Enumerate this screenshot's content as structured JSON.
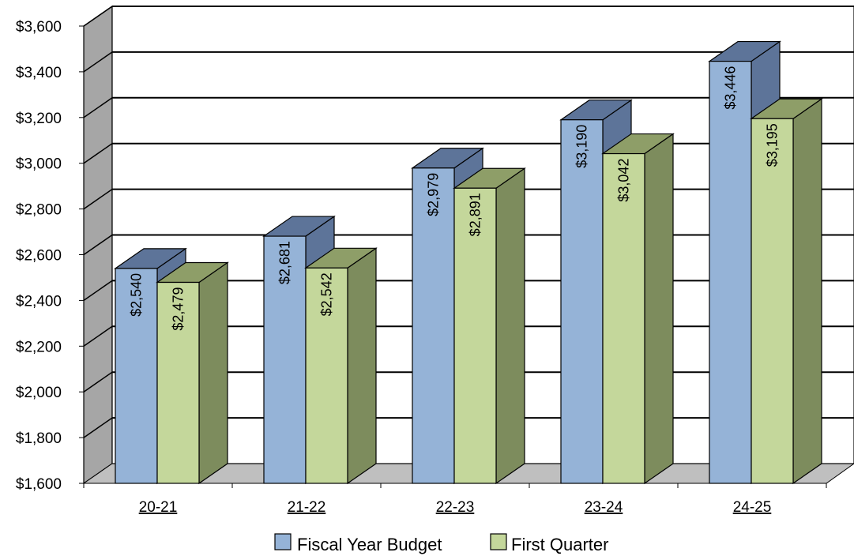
{
  "chart_data": {
    "type": "bar",
    "categories": [
      "20-21",
      "21-22",
      "22-23",
      "23-24",
      "24-25"
    ],
    "series": [
      {
        "name": "Fiscal Year Budget",
        "values": [
          2540,
          2681,
          2979,
          3190,
          3446
        ],
        "labels": [
          "$2,540",
          "$2,681",
          "$2,979",
          "$3,190",
          "$3,446"
        ],
        "color": "#95B3D7"
      },
      {
        "name": "First Quarter",
        "values": [
          2479,
          2542,
          2891,
          3042,
          3195
        ],
        "labels": [
          "$2,479",
          "$2,542",
          "$2,891",
          "$3,042",
          "$3,195"
        ],
        "color": "#C4D79B"
      }
    ],
    "ylim": [
      1600,
      3600
    ],
    "yticks": [
      1600,
      1800,
      2000,
      2200,
      2400,
      2600,
      2800,
      3000,
      3200,
      3400,
      3600
    ],
    "ytick_labels": [
      "$1,600",
      "$1,800",
      "$2,000",
      "$2,200",
      "$2,400",
      "$2,600",
      "$2,800",
      "$3,000",
      "$3,200",
      "$3,400",
      "$3,600"
    ],
    "title": "",
    "xlabel": "",
    "ylabel": "",
    "grid": true,
    "three_d": true,
    "legend_position": "bottom"
  }
}
